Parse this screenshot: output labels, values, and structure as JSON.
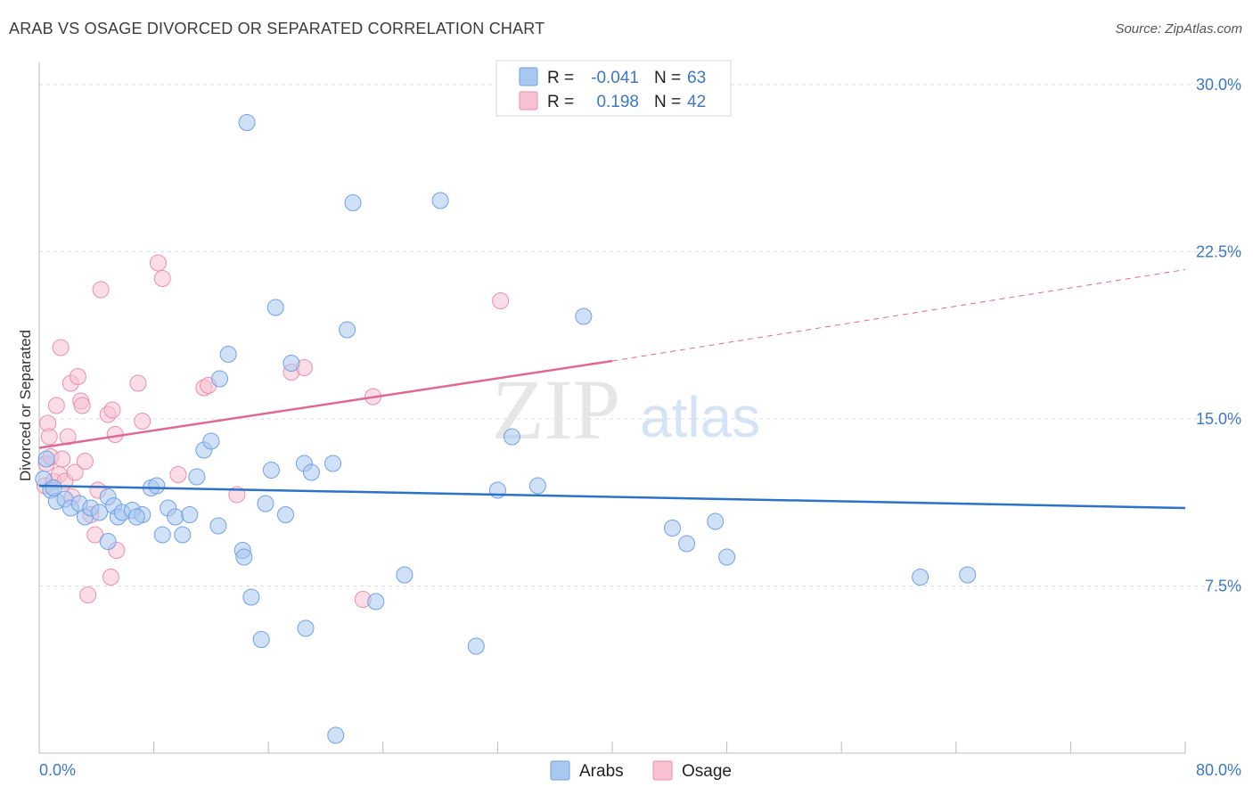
{
  "title": "ARAB VS OSAGE DIVORCED OR SEPARATED CORRELATION CHART",
  "source": "Source: ZipAtlas.com",
  "watermark": {
    "zip": "ZIP",
    "atlas": "atlas"
  },
  "colors": {
    "arab": "#6fa1e6",
    "arab_fill": "#a9c8f0",
    "arab_line": "#2b72c9",
    "osage": "#ea8fae",
    "osage_fill": "#f7c1d2",
    "osage_line": "#e06892",
    "axis_text": "#3b78c9",
    "grid": "#dddddd"
  },
  "legend_top": {
    "rows": [
      {
        "series": "Arabs",
        "r_label": "R =",
        "r_value": "-0.041",
        "n_label": "N =",
        "n_value": "63"
      },
      {
        "series": "Osage",
        "r_label": "R =",
        "r_value": "0.198",
        "n_label": "N =",
        "n_value": "42"
      }
    ]
  },
  "chart_data": {
    "type": "scatter",
    "title": "ARAB VS OSAGE DIVORCED OR SEPARATED CORRELATION CHART",
    "xlabel": "",
    "ylabel": "Divorced or Separated",
    "xlim": [
      0,
      80
    ],
    "ylim": [
      0,
      31
    ],
    "x_tick_labels": [
      "0.0%",
      "80.0%"
    ],
    "y_ticks": [
      7.5,
      15.0,
      22.5,
      30.0
    ],
    "y_tick_labels": [
      "7.5%",
      "15.0%",
      "22.5%",
      "30.0%"
    ],
    "legend": [
      "Arabs",
      "Osage"
    ],
    "series": [
      {
        "name": "Arabs",
        "r": -0.041,
        "n": 63,
        "trend": {
          "x0": 0,
          "y0": 12.0,
          "x1": 80,
          "y1": 11.0,
          "dashed_from": null
        },
        "points": [
          [
            0.3,
            12.3
          ],
          [
            0.5,
            13.2
          ],
          [
            0.8,
            11.8
          ],
          [
            1.2,
            11.3
          ],
          [
            1.8,
            11.4
          ],
          [
            2.2,
            11.0
          ],
          [
            2.8,
            11.2
          ],
          [
            3.2,
            10.6
          ],
          [
            3.6,
            11.0
          ],
          [
            4.2,
            10.8
          ],
          [
            4.8,
            11.5
          ],
          [
            5.2,
            11.1
          ],
          [
            5.5,
            10.6
          ],
          [
            5.8,
            10.8
          ],
          [
            6.5,
            10.9
          ],
          [
            7.2,
            10.7
          ],
          [
            7.8,
            11.9
          ],
          [
            8.2,
            12.0
          ],
          [
            8.6,
            9.8
          ],
          [
            9.0,
            11.0
          ],
          [
            9.5,
            10.6
          ],
          [
            10.0,
            9.8
          ],
          [
            10.5,
            10.7
          ],
          [
            4.8,
            9.5
          ],
          [
            11.0,
            12.4
          ],
          [
            11.5,
            13.6
          ],
          [
            12.0,
            14.0
          ],
          [
            12.5,
            10.2
          ],
          [
            12.6,
            16.8
          ],
          [
            13.2,
            17.9
          ],
          [
            14.2,
            9.1
          ],
          [
            14.3,
            8.8
          ],
          [
            14.8,
            7.0
          ],
          [
            14.5,
            28.3
          ],
          [
            15.5,
            5.1
          ],
          [
            15.8,
            11.2
          ],
          [
            16.2,
            12.7
          ],
          [
            16.5,
            20.0
          ],
          [
            17.2,
            10.7
          ],
          [
            17.6,
            17.5
          ],
          [
            18.5,
            13.0
          ],
          [
            18.6,
            5.6
          ],
          [
            19.0,
            12.6
          ],
          [
            20.5,
            13.0
          ],
          [
            20.7,
            0.8
          ],
          [
            21.5,
            19.0
          ],
          [
            21.9,
            24.7
          ],
          [
            23.5,
            6.8
          ],
          [
            25.5,
            8.0
          ],
          [
            28.0,
            24.8
          ],
          [
            30.5,
            4.8
          ],
          [
            32.0,
            11.8
          ],
          [
            33.0,
            14.2
          ],
          [
            34.8,
            12.0
          ],
          [
            38.0,
            19.6
          ],
          [
            44.2,
            10.1
          ],
          [
            45.2,
            9.4
          ],
          [
            47.2,
            10.4
          ],
          [
            48.0,
            8.8
          ],
          [
            61.5,
            7.9
          ],
          [
            64.8,
            8.0
          ],
          [
            1.0,
            11.9
          ],
          [
            6.8,
            10.6
          ]
        ]
      },
      {
        "name": "Osage",
        "r": 0.198,
        "n": 42,
        "trend": {
          "x0": 0,
          "y0": 13.7,
          "x1": 40,
          "y1": 17.6,
          "dashed_from": 40,
          "dashed_x1": 80,
          "dashed_y1": 21.7
        },
        "points": [
          [
            0.4,
            12.0
          ],
          [
            0.5,
            13.0
          ],
          [
            0.6,
            14.8
          ],
          [
            0.7,
            14.2
          ],
          [
            0.8,
            13.3
          ],
          [
            1.0,
            12.2
          ],
          [
            1.2,
            15.6
          ],
          [
            1.4,
            12.5
          ],
          [
            1.5,
            18.2
          ],
          [
            1.6,
            13.2
          ],
          [
            1.8,
            12.2
          ],
          [
            2.0,
            14.2
          ],
          [
            2.2,
            16.6
          ],
          [
            2.3,
            11.5
          ],
          [
            2.5,
            12.6
          ],
          [
            2.7,
            16.9
          ],
          [
            2.9,
            15.8
          ],
          [
            3.0,
            15.6
          ],
          [
            3.2,
            13.1
          ],
          [
            3.4,
            7.1
          ],
          [
            3.6,
            10.7
          ],
          [
            3.9,
            9.8
          ],
          [
            4.1,
            11.8
          ],
          [
            4.3,
            20.8
          ],
          [
            4.8,
            15.2
          ],
          [
            5.0,
            7.9
          ],
          [
            5.1,
            15.4
          ],
          [
            5.3,
            14.3
          ],
          [
            5.4,
            9.1
          ],
          [
            6.9,
            16.6
          ],
          [
            7.2,
            14.9
          ],
          [
            8.3,
            22.0
          ],
          [
            8.6,
            21.3
          ],
          [
            9.7,
            12.5
          ],
          [
            11.5,
            16.4
          ],
          [
            11.8,
            16.5
          ],
          [
            13.8,
            11.6
          ],
          [
            17.6,
            17.1
          ],
          [
            18.5,
            17.3
          ],
          [
            22.6,
            6.9
          ],
          [
            23.3,
            16.0
          ],
          [
            32.2,
            20.3
          ]
        ]
      }
    ]
  }
}
